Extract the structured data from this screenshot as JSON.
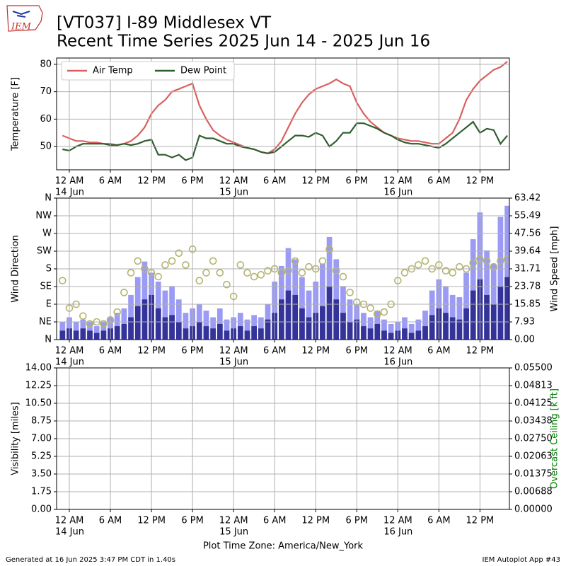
{
  "logo_text": "IEM",
  "title": "[VT037] I-89 Middlesex  VT",
  "subtitle": "Recent Time Series 2025 Jun 14 - 2025 Jun 16",
  "footer_left": "Generated at 16 Jun 2025 3:47 PM CDT in 1.40s",
  "footer_right": "IEM Autoplot App #43",
  "chart_data": [
    {
      "type": "line",
      "ylabel": "Temperature [F]",
      "grid": true,
      "legend": "upper left",
      "xlim": [
        -1.86,
        64.3
      ],
      "xticks": [
        {
          "value": 0,
          "label": "12 AM"
        },
        {
          "value": 6,
          "label": "6 AM"
        },
        {
          "value": 12,
          "label": "12 PM"
        },
        {
          "value": 18,
          "label": "6 PM"
        },
        {
          "value": 24,
          "label": "12 AM"
        },
        {
          "value": 30,
          "label": "6 AM"
        },
        {
          "value": 36,
          "label": "12 PM"
        },
        {
          "value": 42,
          "label": "6 PM"
        },
        {
          "value": 48,
          "label": "12 AM"
        },
        {
          "value": 54,
          "label": "6 AM"
        },
        {
          "value": 60,
          "label": "12 PM"
        }
      ],
      "xtick_dates": [
        {
          "value": 0,
          "label": "14 Jun"
        },
        {
          "value": 24,
          "label": "15 Jun"
        },
        {
          "value": 48,
          "label": "16 Jun"
        }
      ],
      "ylim": [
        41.5,
        82.3
      ],
      "yticks": [
        50,
        60,
        70,
        80
      ],
      "x": [
        -1,
        0,
        1,
        2,
        3,
        4,
        5,
        6,
        7,
        8,
        9,
        10,
        11,
        12,
        13,
        14,
        15,
        16,
        17,
        18,
        19,
        20,
        21,
        22,
        23,
        24,
        25,
        26,
        27,
        28,
        29,
        30,
        31,
        32,
        33,
        34,
        35,
        36,
        37,
        38,
        39,
        40,
        41,
        42,
        43,
        44,
        45,
        46,
        47,
        48,
        49,
        50,
        51,
        52,
        53,
        54,
        55,
        56,
        57,
        58,
        59,
        60,
        61,
        62,
        63,
        64
      ],
      "series": [
        {
          "name": "Air Temp",
          "color": "#d9605e",
          "values": [
            54,
            53,
            52,
            52,
            51.5,
            51.5,
            51,
            51,
            50.5,
            51,
            52,
            54,
            57,
            62,
            65,
            67,
            70,
            71,
            72,
            73,
            65,
            60,
            56,
            54,
            52.5,
            51.5,
            50.5,
            49.5,
            49,
            48,
            47.5,
            49,
            52,
            57,
            62,
            66,
            69,
            71,
            72,
            73,
            74.5,
            73,
            72,
            66,
            62,
            59,
            57,
            55,
            54,
            53,
            52.5,
            52,
            52,
            51.5,
            51,
            51,
            53,
            55,
            60,
            67,
            71,
            74,
            76,
            78,
            79,
            81
          ]
        },
        {
          "name": "Dew Point",
          "color": "#2f5e2f",
          "values": [
            49,
            48.5,
            50,
            51,
            51,
            51,
            51,
            50.5,
            50.5,
            51,
            50.5,
            51,
            52,
            52.5,
            47,
            47,
            46,
            47,
            45,
            46,
            54,
            53,
            53,
            52,
            51,
            51,
            50,
            49.5,
            49,
            48,
            47.5,
            48,
            50,
            52,
            54,
            54,
            53.5,
            55,
            54,
            50,
            52,
            55,
            55,
            58.5,
            58.5,
            57.5,
            56.5,
            55,
            54,
            52.5,
            51.5,
            51,
            51,
            50.5,
            50,
            49.5,
            51,
            53,
            55,
            57,
            59,
            55,
            56.5,
            56,
            51,
            54
          ]
        }
      ]
    },
    {
      "type": "wind",
      "ylabel": "Wind Direction",
      "y2label": "Wind Speed [mph]",
      "grid": true,
      "xlim": [
        -1.86,
        64.3
      ],
      "xticks": [
        {
          "value": 0,
          "label": "12 AM"
        },
        {
          "value": 6,
          "label": "6 AM"
        },
        {
          "value": 12,
          "label": "12 PM"
        },
        {
          "value": 18,
          "label": "6 PM"
        },
        {
          "value": 24,
          "label": "12 AM"
        },
        {
          "value": 30,
          "label": "6 AM"
        },
        {
          "value": 36,
          "label": "12 PM"
        },
        {
          "value": 42,
          "label": "6 PM"
        },
        {
          "value": 48,
          "label": "12 AM"
        },
        {
          "value": 54,
          "label": "6 AM"
        },
        {
          "value": 60,
          "label": "12 PM"
        }
      ],
      "xtick_dates": [
        {
          "value": 0,
          "label": "14 Jun"
        },
        {
          "value": 24,
          "label": "15 Jun"
        },
        {
          "value": 48,
          "label": "16 Jun"
        }
      ],
      "ylim": [
        0,
        360
      ],
      "yticks": [
        {
          "value": 0,
          "label": "N"
        },
        {
          "value": 45,
          "label": "NE"
        },
        {
          "value": 90,
          "label": "E"
        },
        {
          "value": 135,
          "label": "SE"
        },
        {
          "value": 180,
          "label": "S"
        },
        {
          "value": 225,
          "label": "SW"
        },
        {
          "value": 270,
          "label": "W"
        },
        {
          "value": 315,
          "label": "NW"
        },
        {
          "value": 360,
          "label": "N"
        }
      ],
      "y2lim": [
        0,
        63.42
      ],
      "y2ticks": [
        {
          "value": 0,
          "label": "0.00"
        },
        7.93,
        15.85,
        23.78,
        31.71,
        39.64,
        47.56,
        55.49,
        63.42
      ],
      "x": [
        -1,
        0,
        1,
        2,
        3,
        4,
        5,
        6,
        7,
        8,
        9,
        10,
        11,
        12,
        13,
        14,
        15,
        16,
        17,
        18,
        19,
        20,
        21,
        22,
        23,
        24,
        25,
        26,
        27,
        28,
        29,
        30,
        31,
        32,
        33,
        34,
        35,
        36,
        37,
        38,
        39,
        40,
        41,
        42,
        43,
        44,
        45,
        46,
        47,
        48,
        49,
        50,
        51,
        52,
        53,
        54,
        55,
        56,
        57,
        58,
        59,
        60,
        61,
        62,
        63,
        64
      ],
      "series": [
        {
          "kind": "bar",
          "axis": "y2",
          "color": "#9b9bf5",
          "values": [
            8,
            10,
            8,
            9,
            8,
            6,
            8,
            10,
            12,
            14,
            20,
            28,
            35,
            30,
            26,
            22,
            24,
            18,
            12,
            14,
            16,
            13,
            10,
            14,
            9,
            10,
            12,
            9,
            11,
            10,
            16,
            26,
            33,
            41,
            36,
            28,
            22,
            26,
            34,
            46,
            36,
            24,
            18,
            16,
            12,
            10,
            13,
            9,
            7,
            8,
            10,
            7,
            9,
            13,
            22,
            27,
            24,
            20,
            19,
            30,
            45,
            57,
            40,
            34,
            55,
            60
          ]
        },
        {
          "kind": "bar",
          "axis": "y2",
          "color": "#333399",
          "values": [
            4,
            5,
            4,
            5,
            4,
            3,
            4,
            5,
            6,
            7,
            10,
            15,
            18,
            20,
            14,
            10,
            11,
            8,
            5,
            6,
            8,
            6,
            5,
            7,
            4,
            5,
            6,
            4,
            6,
            5,
            9,
            12,
            18,
            22,
            20,
            14,
            10,
            12,
            15,
            24,
            18,
            12,
            8,
            9,
            6,
            5,
            7,
            4,
            3,
            4,
            5,
            3,
            4,
            6,
            11,
            14,
            12,
            10,
            9,
            14,
            22,
            27,
            20,
            16,
            24,
            28
          ]
        },
        {
          "kind": "scatter",
          "color": "#b4b46e",
          "values": [
            150,
            80,
            90,
            60,
            40,
            45,
            40,
            50,
            70,
            120,
            170,
            200,
            180,
            170,
            160,
            190,
            200,
            220,
            190,
            230,
            150,
            170,
            200,
            170,
            140,
            110,
            190,
            170,
            160,
            165,
            175,
            180,
            170,
            175,
            200,
            170,
            185,
            180,
            200,
            230,
            175,
            160,
            120,
            95,
            90,
            80,
            65,
            70,
            90,
            150,
            170,
            180,
            190,
            200,
            180,
            190,
            175,
            170,
            185,
            180,
            195,
            205,
            200,
            185,
            200,
            205
          ]
        }
      ]
    },
    {
      "type": "empty",
      "ylabel": "Visibility [miles]",
      "y2label": "Overcast Ceiling [k ft]",
      "y2label_color": "#008000",
      "grid": true,
      "xlabel": "Plot Time Zone: America/New_York",
      "xlim": [
        -1.86,
        64.3
      ],
      "xticks": [
        {
          "value": 0,
          "label": "12 AM"
        },
        {
          "value": 6,
          "label": "6 AM"
        },
        {
          "value": 12,
          "label": "12 PM"
        },
        {
          "value": 18,
          "label": "6 PM"
        },
        {
          "value": 24,
          "label": "12 AM"
        },
        {
          "value": 30,
          "label": "6 AM"
        },
        {
          "value": 36,
          "label": "12 PM"
        },
        {
          "value": 42,
          "label": "6 PM"
        },
        {
          "value": 48,
          "label": "12 AM"
        },
        {
          "value": 54,
          "label": "6 AM"
        },
        {
          "value": 60,
          "label": "12 PM"
        }
      ],
      "xtick_dates": [
        {
          "value": 0,
          "label": "14 Jun"
        },
        {
          "value": 24,
          "label": "15 Jun"
        },
        {
          "value": 48,
          "label": "16 Jun"
        }
      ],
      "ylim": [
        0,
        14
      ],
      "yticks": [
        {
          "value": 0,
          "label": "0.00"
        },
        {
          "value": 1.75,
          "label": "1.75"
        },
        {
          "value": 3.5,
          "label": "3.50"
        },
        {
          "value": 5.25,
          "label": "5.25"
        },
        {
          "value": 7,
          "label": "7.00"
        },
        {
          "value": 8.75,
          "label": "8.75"
        },
        {
          "value": 10.5,
          "label": "10.50"
        },
        {
          "value": 12.25,
          "label": "12.25"
        },
        {
          "value": 14,
          "label": "14.00"
        }
      ],
      "y2lim": [
        0,
        0.055
      ],
      "y2ticks": [
        {
          "value": 0,
          "label": "0.00000"
        },
        {
          "value": 0.006875,
          "label": "0.00688"
        },
        {
          "value": 0.01375,
          "label": "0.01375"
        },
        {
          "value": 0.020625,
          "label": "0.02063"
        },
        {
          "value": 0.0275,
          "label": "0.02750"
        },
        {
          "value": 0.034375,
          "label": "0.03438"
        },
        {
          "value": 0.04125,
          "label": "0.04125"
        },
        {
          "value": 0.048125,
          "label": "0.04813"
        },
        {
          "value": 0.055,
          "label": "0.05500"
        }
      ]
    }
  ]
}
